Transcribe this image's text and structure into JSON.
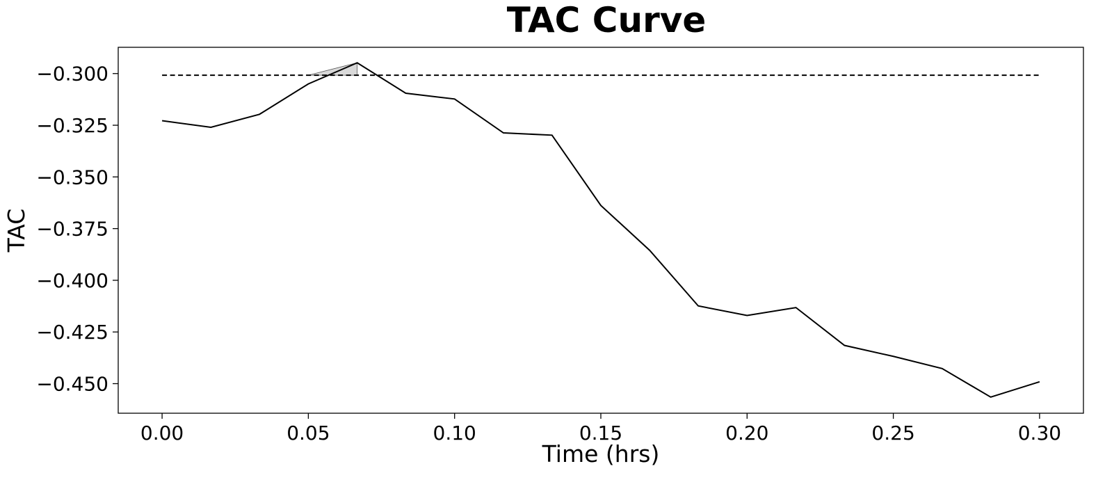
{
  "chart_data": {
    "type": "line",
    "title": "TAC Curve",
    "xlabel": "Time (hrs)",
    "ylabel": "TAC",
    "xlim": [
      -0.015,
      0.315
    ],
    "ylim": [
      -0.4643,
      -0.2873
    ],
    "grid": false,
    "legend": "none",
    "x_ticks": [
      0.0,
      0.05,
      0.1,
      0.15,
      0.2,
      0.25,
      0.3
    ],
    "x_tick_labels": [
      "0.00",
      "0.05",
      "0.10",
      "0.15",
      "0.20",
      "0.25",
      "0.30"
    ],
    "y_ticks": [
      -0.3,
      -0.325,
      -0.35,
      -0.375,
      -0.4,
      -0.425,
      -0.45
    ],
    "y_tick_labels": [
      "−0.300",
      "−0.325",
      "−0.350",
      "−0.375",
      "−0.400",
      "−0.425",
      "−0.450"
    ],
    "series": [
      {
        "x": [
          0.0,
          0.0167,
          0.0333,
          0.05,
          0.0667,
          0.0833,
          0.1,
          0.1167,
          0.1333,
          0.15,
          0.1667,
          0.1833,
          0.2,
          0.2167,
          0.2333,
          0.25,
          0.2667,
          0.2833,
          0.3
        ],
        "values": [
          -0.3228,
          -0.326,
          -0.3197,
          -0.305,
          -0.2948,
          -0.3095,
          -0.3123,
          -0.3287,
          -0.3298,
          -0.3638,
          -0.3855,
          -0.4124,
          -0.417,
          -0.4132,
          -0.4315,
          -0.4368,
          -0.4427,
          -0.4565,
          -0.4491
        ],
        "color": "#000000",
        "style": "solid"
      }
    ],
    "threshold": {
      "value": -0.3008,
      "x_range": [
        0.0,
        0.3
      ],
      "color": "#000000",
      "style": "dashed"
    },
    "shaded_region": {
      "x_range": [
        0.05,
        0.0667
      ],
      "between": "series-and-threshold",
      "color": "#d9d9d9"
    }
  }
}
